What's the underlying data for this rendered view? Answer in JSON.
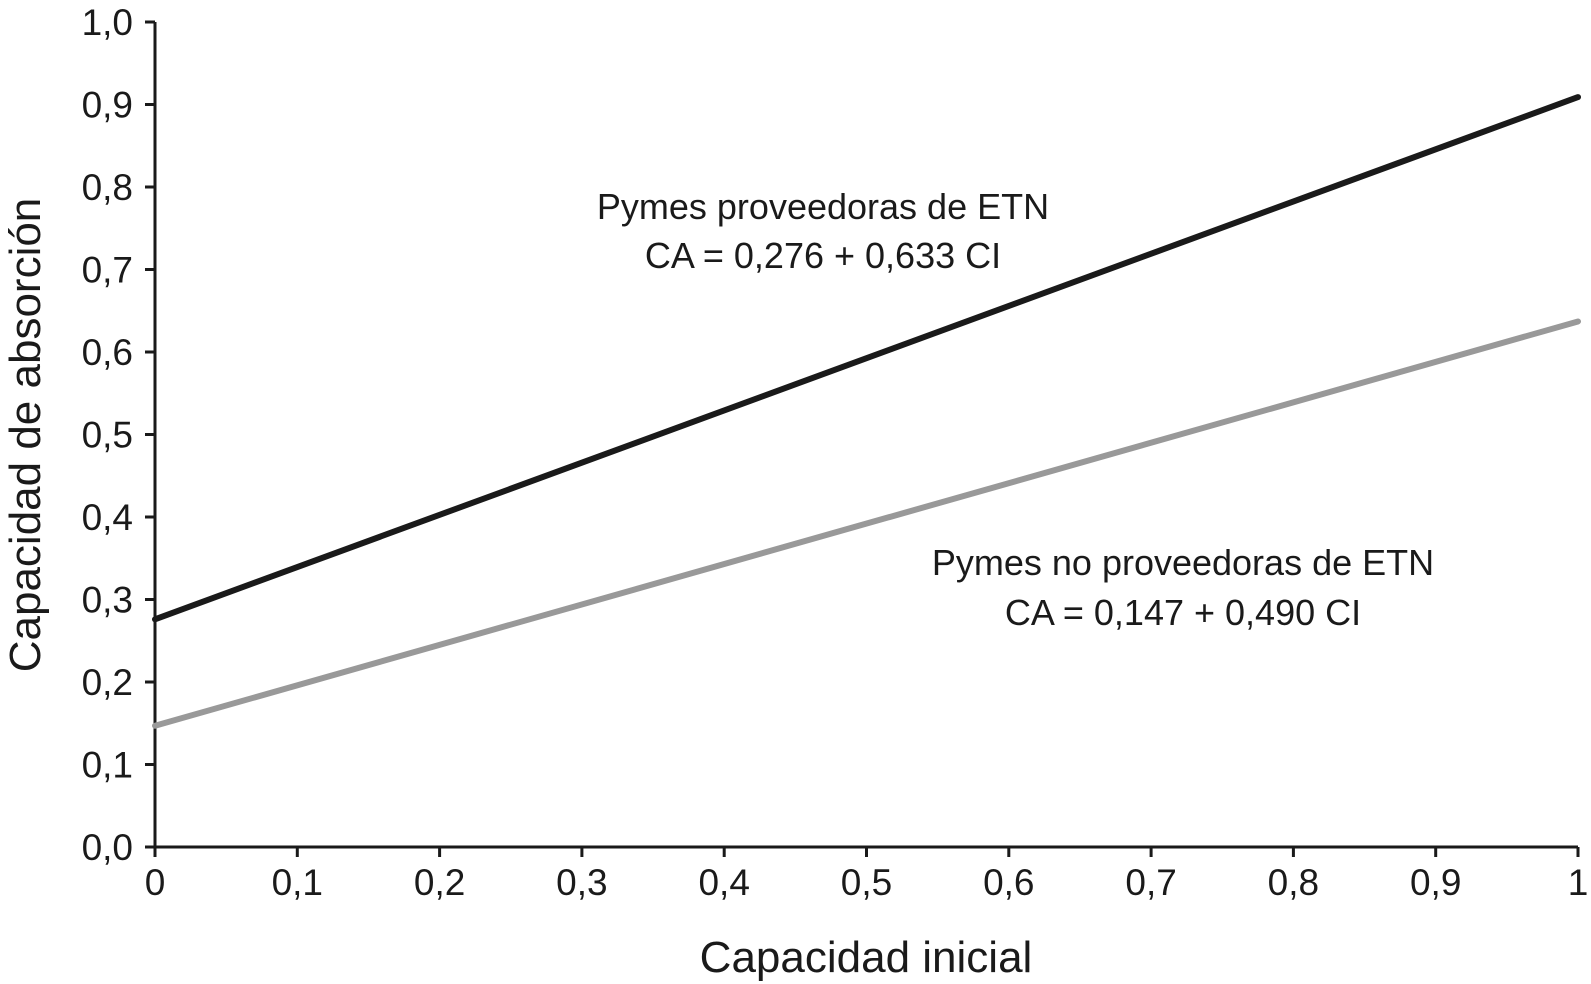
{
  "chart_data": {
    "type": "line",
    "xlabel": "Capacidad inicial",
    "ylabel": "Capacidad de absorción",
    "xlim": [
      0,
      1
    ],
    "ylim": [
      0,
      1
    ],
    "x_ticks": [
      "0",
      "0,1",
      "0,2",
      "0,3",
      "0,4",
      "0,5",
      "0,6",
      "0,7",
      "0,8",
      "0,9",
      "1"
    ],
    "y_ticks": [
      "0,0",
      "0,1",
      "0,2",
      "0,3",
      "0,4",
      "0,5",
      "0,6",
      "0,7",
      "0,8",
      "0,9",
      "1,0"
    ],
    "grid": false,
    "series": [
      {
        "color": "#1a1a1a",
        "x": [
          0,
          1
        ],
        "y": [
          0.276,
          0.909
        ]
      },
      {
        "color": "#999999",
        "x": [
          0,
          1
        ],
        "y": [
          0.147,
          0.637
        ]
      }
    ],
    "annotations": [
      {
        "line1": "Pymes proveedoras de ETN",
        "line2": "CA = 0,276 + 0,633 CI"
      },
      {
        "line1": "Pymes no proveedoras de ETN",
        "line2": "CA = 0,147 + 0,490 CI"
      }
    ]
  }
}
